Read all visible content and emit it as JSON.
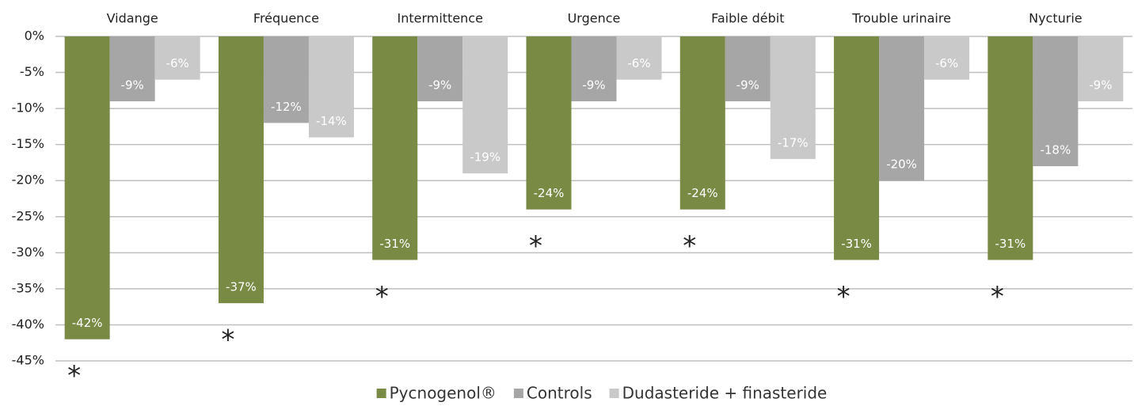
{
  "chart_data": {
    "type": "bar",
    "categories": [
      "Vidange",
      "Fréquence",
      "Intermittence",
      "Urgence",
      "Faible débit",
      "Trouble urinaire",
      "Nycturie"
    ],
    "series": [
      {
        "name": "Pycnogenol®",
        "color": "#788a43",
        "values": [
          -42,
          -37,
          -31,
          -24,
          -24,
          -31,
          -31
        ],
        "value_labels": [
          "-42%",
          "-37%",
          "-31%",
          "-24%",
          "-24%",
          "-31%",
          "-31%"
        ]
      },
      {
        "name": "Controls",
        "color": "#a6a6a6",
        "values": [
          -9,
          -12,
          -9,
          -9,
          -9,
          -20,
          -18
        ],
        "value_labels": [
          "-9%",
          "-12%",
          "-9%",
          "-9%",
          "-9%",
          "-20%",
          "-18%"
        ]
      },
      {
        "name": "Dudasteride + finasteride",
        "color": "#c9c9c9",
        "values": [
          -6,
          -14,
          -19,
          -6,
          -17,
          -6,
          -9
        ],
        "value_labels": [
          "-6%",
          "-14%",
          "-19%",
          "-6%",
          "-17%",
          "-6%",
          "-9%"
        ]
      }
    ],
    "significance": [
      "*",
      "*",
      "*",
      "*",
      "*",
      "*",
      "*"
    ],
    "ylim": [
      -45,
      0
    ],
    "yticks": [
      {
        "value": 0,
        "label": "0%"
      },
      {
        "value": -5,
        "label": "-5%"
      },
      {
        "value": -10,
        "label": "-10%"
      },
      {
        "value": -15,
        "label": "-15%"
      },
      {
        "value": -20,
        "label": "-20%"
      },
      {
        "value": -25,
        "label": "-25%"
      },
      {
        "value": -30,
        "label": "-30%"
      },
      {
        "value": -35,
        "label": "-35%"
      },
      {
        "value": -40,
        "label": "-40%"
      },
      {
        "value": -45,
        "label": "-45%"
      }
    ],
    "grid": true,
    "legend": "bottom"
  }
}
